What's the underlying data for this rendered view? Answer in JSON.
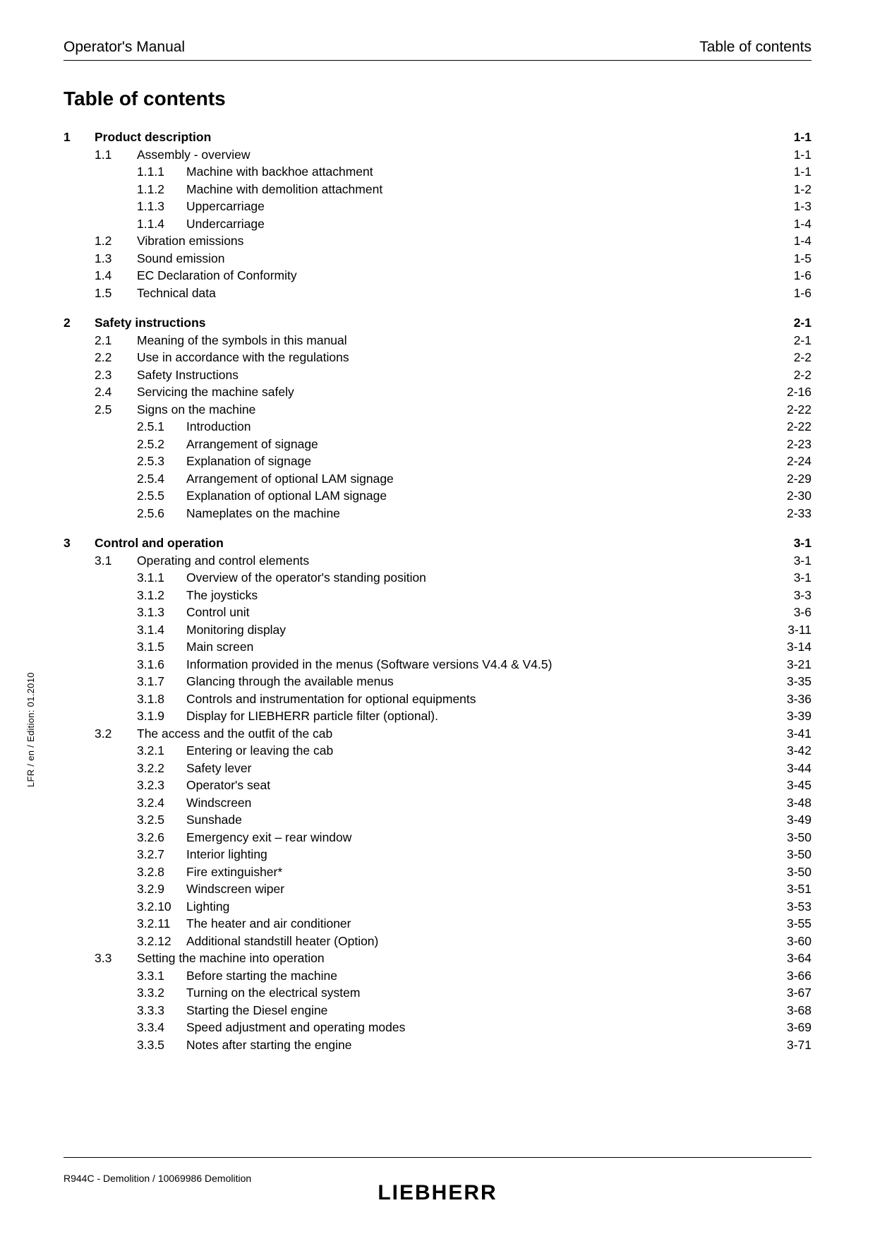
{
  "header": {
    "left": "Operator's Manual",
    "right": "Table of contents"
  },
  "title": "Table of contents",
  "side_text": "LFR / en / Edition: 01.2010",
  "footer": "R944C - Demolition / 10069986 Demolition",
  "brand": "LIEBHERR",
  "toc": [
    {
      "level": 0,
      "num": "1",
      "title": "Product description",
      "page": "1-1",
      "spaced": true
    },
    {
      "level": 1,
      "num": "1.1",
      "title": "Assembly - overview",
      "page": "1-1"
    },
    {
      "level": 2,
      "num": "1.1.1",
      "title": "Machine with backhoe attachment",
      "page": "1-1"
    },
    {
      "level": 2,
      "num": "1.1.2",
      "title": "Machine with demolition attachment",
      "page": "1-2"
    },
    {
      "level": 2,
      "num": "1.1.3",
      "title": "Uppercarriage",
      "page": "1-3"
    },
    {
      "level": 2,
      "num": "1.1.4",
      "title": "Undercarriage",
      "page": "1-4"
    },
    {
      "level": 1,
      "num": "1.2",
      "title": "Vibration emissions",
      "page": "1-4"
    },
    {
      "level": 1,
      "num": "1.3",
      "title": "Sound emission",
      "page": "1-5"
    },
    {
      "level": 1,
      "num": "1.4",
      "title": "EC Declaration of Conformity",
      "page": "1-6"
    },
    {
      "level": 1,
      "num": "1.5",
      "title": "Technical data",
      "page": "1-6"
    },
    {
      "level": 0,
      "num": "2",
      "title": "Safety instructions",
      "page": "2-1",
      "spaced": true
    },
    {
      "level": 1,
      "num": "2.1",
      "title": "Meaning of the symbols in this manual",
      "page": "2-1"
    },
    {
      "level": 1,
      "num": "2.2",
      "title": "Use in accordance with the regulations",
      "page": "2-2"
    },
    {
      "level": 1,
      "num": "2.3",
      "title": "Safety Instructions",
      "page": "2-2"
    },
    {
      "level": 1,
      "num": "2.4",
      "title": "Servicing the machine safely",
      "page": "2-16"
    },
    {
      "level": 1,
      "num": "2.5",
      "title": "Signs on the machine",
      "page": "2-22"
    },
    {
      "level": 2,
      "num": "2.5.1",
      "title": "Introduction",
      "page": "2-22"
    },
    {
      "level": 2,
      "num": "2.5.2",
      "title": "Arrangement of signage",
      "page": "2-23"
    },
    {
      "level": 2,
      "num": "2.5.3",
      "title": "Explanation of signage",
      "page": "2-24"
    },
    {
      "level": 2,
      "num": "2.5.4",
      "title": "Arrangement of optional LAM signage",
      "page": "2-29"
    },
    {
      "level": 2,
      "num": "2.5.5",
      "title": "Explanation of optional LAM signage",
      "page": "2-30"
    },
    {
      "level": 2,
      "num": "2.5.6",
      "title": "Nameplates on the machine",
      "page": "2-33"
    },
    {
      "level": 0,
      "num": "3",
      "title": "Control and operation",
      "page": "3-1",
      "spaced": true
    },
    {
      "level": 1,
      "num": "3.1",
      "title": "Operating and control elements",
      "page": "3-1"
    },
    {
      "level": 2,
      "num": "3.1.1",
      "title": "Overview of the operator's standing position",
      "page": "3-1"
    },
    {
      "level": 2,
      "num": "3.1.2",
      "title": "The joysticks",
      "page": "3-3"
    },
    {
      "level": 2,
      "num": "3.1.3",
      "title": "Control unit",
      "page": "3-6"
    },
    {
      "level": 2,
      "num": "3.1.4",
      "title": "Monitoring display",
      "page": "3-11"
    },
    {
      "level": 2,
      "num": "3.1.5",
      "title": "Main screen",
      "page": "3-14"
    },
    {
      "level": 2,
      "num": "3.1.6",
      "title": "Information provided in the menus (Software versions V4.4 & V4.5)",
      "page": "3-21"
    },
    {
      "level": 2,
      "num": "3.1.7",
      "title": "Glancing through the available menus",
      "page": "3-35"
    },
    {
      "level": 2,
      "num": "3.1.8",
      "title": "Controls and instrumentation for optional equipments",
      "page": "3-36"
    },
    {
      "level": 2,
      "num": "3.1.9",
      "title": "Display for LIEBHERR particle filter (optional).",
      "page": "3-39"
    },
    {
      "level": 1,
      "num": "3.2",
      "title": "The access and the outfit of the cab",
      "page": "3-41"
    },
    {
      "level": 2,
      "num": "3.2.1",
      "title": "Entering or leaving the cab",
      "page": "3-42"
    },
    {
      "level": 2,
      "num": "3.2.2",
      "title": "Safety lever",
      "page": "3-44"
    },
    {
      "level": 2,
      "num": "3.2.3",
      "title": "Operator's seat",
      "page": "3-45"
    },
    {
      "level": 2,
      "num": "3.2.4",
      "title": "Windscreen",
      "page": "3-48"
    },
    {
      "level": 2,
      "num": "3.2.5",
      "title": "Sunshade",
      "page": "3-49"
    },
    {
      "level": 2,
      "num": "3.2.6",
      "title": "Emergency exit – rear window",
      "page": "3-50"
    },
    {
      "level": 2,
      "num": "3.2.7",
      "title": "Interior lighting",
      "page": "3-50"
    },
    {
      "level": 2,
      "num": "3.2.8",
      "title": "Fire extinguisher*",
      "page": "3-50"
    },
    {
      "level": 2,
      "num": "3.2.9",
      "title": "Windscreen wiper",
      "page": "3-51"
    },
    {
      "level": 2,
      "num": "3.2.10",
      "title": "Lighting",
      "page": "3-53"
    },
    {
      "level": 2,
      "num": "3.2.11",
      "title": "The heater and air conditioner",
      "page": "3-55"
    },
    {
      "level": 2,
      "num": "3.2.12",
      "title": "Additional standstill heater (Option)",
      "page": "3-60"
    },
    {
      "level": 1,
      "num": "3.3",
      "title": "Setting the machine into operation",
      "page": "3-64"
    },
    {
      "level": 2,
      "num": "3.3.1",
      "title": "Before starting the machine",
      "page": "3-66"
    },
    {
      "level": 2,
      "num": "3.3.2",
      "title": "Turning on the electrical system",
      "page": "3-67"
    },
    {
      "level": 2,
      "num": "3.3.3",
      "title": "Starting the Diesel engine",
      "page": "3-68"
    },
    {
      "level": 2,
      "num": "3.3.4",
      "title": "Speed adjustment and operating modes",
      "page": "3-69"
    },
    {
      "level": 2,
      "num": "3.3.5",
      "title": "Notes after starting the engine",
      "page": "3-71"
    }
  ]
}
